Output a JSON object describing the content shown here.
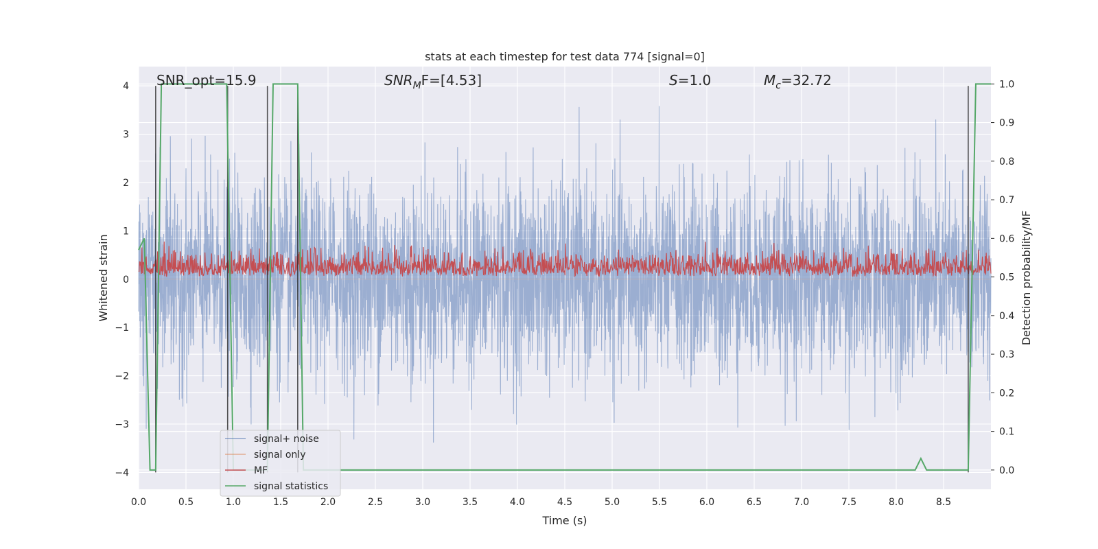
{
  "chart_data": {
    "type": "line",
    "title": "stats at each timestep for test data 774 [signal=0]",
    "xlabel": "Time (s)",
    "ylabel_left": "Whitened strain",
    "ylabel_right": "Detection probability/MF",
    "xlim": [
      0.0,
      9.0
    ],
    "ylim_left": [
      -4.35,
      4.4
    ],
    "ylim_right": [
      -0.05,
      1.045
    ],
    "x_ticks": [
      "0.0",
      "0.5",
      "1.0",
      "1.5",
      "2.0",
      "2.5",
      "3.0",
      "3.5",
      "4.0",
      "4.5",
      "5.0",
      "5.5",
      "6.0",
      "6.5",
      "7.0",
      "7.5",
      "8.0",
      "8.5"
    ],
    "y_ticks_left": [
      "4",
      "3",
      "2",
      "1",
      "0",
      "−1",
      "−2",
      "−3",
      "−4"
    ],
    "y_ticks_right": [
      "1.0",
      "0.9",
      "0.8",
      "0.7",
      "0.6",
      "0.5",
      "0.4",
      "0.3",
      "0.2",
      "0.1",
      "0.0"
    ],
    "grid": true,
    "legend_position": "lower-left",
    "annotations": {
      "snr_opt": "SNR_opt=15.9",
      "snr_mf_main": "SNR",
      "snr_mf_sub": "M",
      "snr_mf_rest": "F=[4.53]",
      "s_var": "S",
      "s_rest": "=1.0",
      "mc_var": "M",
      "mc_sub": "c",
      "mc_rest": "=32.72"
    },
    "series": [
      {
        "name": "signal+ noise",
        "color": "#4c72b0",
        "axis": "left",
        "kind": "noise",
        "amplitude_range": [
          -3.9,
          3.9
        ]
      },
      {
        "name": "signal only",
        "color": "#dd8452",
        "axis": "left",
        "kind": "flat",
        "values": [
          0
        ]
      },
      {
        "name": "MF",
        "color": "#c44e52",
        "axis": "right",
        "kind": "noise",
        "range": [
          0.5,
          0.62
        ]
      },
      {
        "name": "signal statistics",
        "color": "#55a868",
        "axis": "right",
        "x": [
          0.0,
          0.06,
          0.12,
          0.18,
          0.24,
          0.33,
          0.93,
          1.0,
          1.06,
          1.36,
          1.42,
          1.62,
          1.68,
          1.74,
          8.2,
          8.26,
          8.32,
          8.76,
          8.84,
          9.0
        ],
        "y": [
          0.57,
          0.6,
          0.0,
          0.0,
          1.0,
          1.0,
          1.0,
          0.0,
          0.0,
          0.0,
          1.0,
          1.0,
          1.0,
          0.0,
          0.0,
          0.03,
          0.0,
          0.0,
          1.0,
          1.0
        ]
      }
    ],
    "vertical_markers": {
      "color": "#2b2b2b",
      "x": [
        0.18,
        0.94,
        1.36,
        1.68,
        8.76
      ]
    }
  }
}
